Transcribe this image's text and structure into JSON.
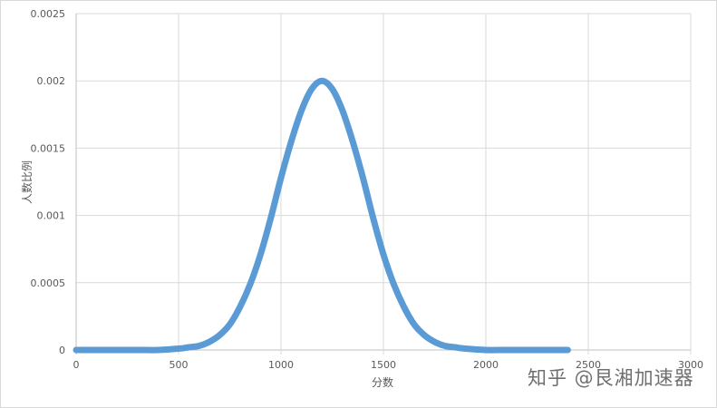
{
  "chart_data": {
    "type": "line",
    "title": "",
    "xlabel": "分数",
    "ylabel": "人数比例",
    "xlim": [
      0,
      3000
    ],
    "ylim": [
      0,
      0.0025
    ],
    "x_ticks": [
      "0",
      "500",
      "1000",
      "1500",
      "2000",
      "2500",
      "3000"
    ],
    "y_ticks": [
      "0",
      "0.0005",
      "0.001",
      "0.0015",
      "0.002",
      "0.0025"
    ],
    "grid": true,
    "legend": "none",
    "series": [
      {
        "color": "#5b9bd5",
        "x": [
          0,
          100,
          200,
          300,
          400,
          500,
          550,
          600,
          650,
          700,
          750,
          800,
          850,
          900,
          950,
          1000,
          1050,
          1100,
          1150,
          1200,
          1250,
          1300,
          1350,
          1400,
          1450,
          1500,
          1550,
          1600,
          1650,
          1700,
          1750,
          1800,
          1850,
          1900,
          2000,
          2100,
          2200,
          2300,
          2400
        ],
        "y": [
          0,
          0,
          0,
          0,
          0,
          1e-05,
          2e-05,
          3e-05,
          6e-05,
          0.00011,
          0.00019,
          0.00032,
          0.00049,
          0.00071,
          0.00098,
          0.00128,
          0.00155,
          0.00178,
          0.00194,
          0.002,
          0.00194,
          0.00178,
          0.00155,
          0.00128,
          0.00098,
          0.00071,
          0.00049,
          0.00032,
          0.00019,
          0.00011,
          6e-05,
          3e-05,
          2e-05,
          1e-05,
          0,
          0,
          0,
          0,
          0
        ]
      }
    ]
  },
  "watermark": "知乎 @艮湘加速器"
}
